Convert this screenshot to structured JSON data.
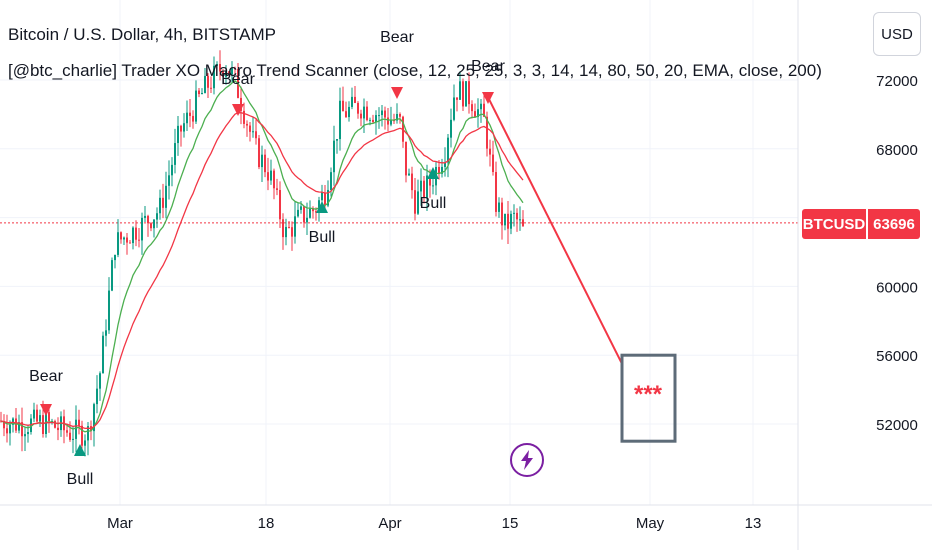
{
  "header": {
    "title": "Bitcoin / U.S. Dollar, 4h, BITSTAMP",
    "indicator": "[@btc_charlie] Trader XO Macro Trend Scanner (close, 12, 25, 25, 3, 3, 14, 14, 80, 50, 20, EMA, close, 200)"
  },
  "currency_button": "USD",
  "price_tag": {
    "symbol": "BTCUSD",
    "value": "63696",
    "color": "#f23645"
  },
  "colors": {
    "bull": "#089981",
    "bear": "#f23645",
    "ema_fast": "#4caf50",
    "ema_slow": "#f23645",
    "box": "#5d6b78"
  },
  "icons": {
    "bolt": "lightning-icon"
  },
  "chart_data": {
    "type": "candlestick",
    "x_ticks": [
      "Mar",
      "18",
      "Apr",
      "15",
      "May",
      "13"
    ],
    "y_ticks": [
      52000,
      56000,
      60000,
      64000,
      68000,
      72000
    ],
    "y_tick_labels": [
      "52000",
      "56000",
      "60000",
      "68000",
      "72000"
    ],
    "ylim": [
      48000,
      74500
    ],
    "last_price": 63696,
    "price_path": [
      [
        0,
        52200
      ],
      [
        20,
        52000
      ],
      [
        45,
        52100
      ],
      [
        70,
        51500
      ],
      [
        88,
        51500
      ],
      [
        100,
        55000
      ],
      [
        115,
        62500
      ],
      [
        140,
        63500
      ],
      [
        160,
        64500
      ],
      [
        180,
        69000
      ],
      [
        205,
        71500
      ],
      [
        225,
        73000
      ],
      [
        235,
        72000
      ],
      [
        255,
        68000
      ],
      [
        270,
        66500
      ],
      [
        285,
        63000
      ],
      [
        300,
        64000
      ],
      [
        315,
        64500
      ],
      [
        325,
        65500
      ],
      [
        340,
        70000
      ],
      [
        360,
        70500
      ],
      [
        380,
        70000
      ],
      [
        400,
        69500
      ],
      [
        405,
        67000
      ],
      [
        415,
        65000
      ],
      [
        430,
        66000
      ],
      [
        445,
        68000
      ],
      [
        455,
        71500
      ],
      [
        470,
        71000
      ],
      [
        485,
        69500
      ],
      [
        495,
        65000
      ],
      [
        505,
        63500
      ],
      [
        515,
        64000
      ],
      [
        525,
        63000
      ]
    ],
    "signals": [
      {
        "label": "Bear",
        "type": "bear"
      },
      {
        "label": "Bull",
        "type": "bull"
      },
      {
        "label": "Bear",
        "type": "bear"
      },
      {
        "label": "Bull",
        "type": "bull"
      },
      {
        "label": "Bear",
        "type": "bear"
      },
      {
        "label": "Bull",
        "type": "bull"
      },
      {
        "label": "Bear",
        "type": "bear"
      }
    ],
    "projection": {
      "from_price": 71000,
      "to_price": 55500
    },
    "target_box": {
      "label": "***",
      "price_top": 56000,
      "price_bottom": 51000
    }
  }
}
